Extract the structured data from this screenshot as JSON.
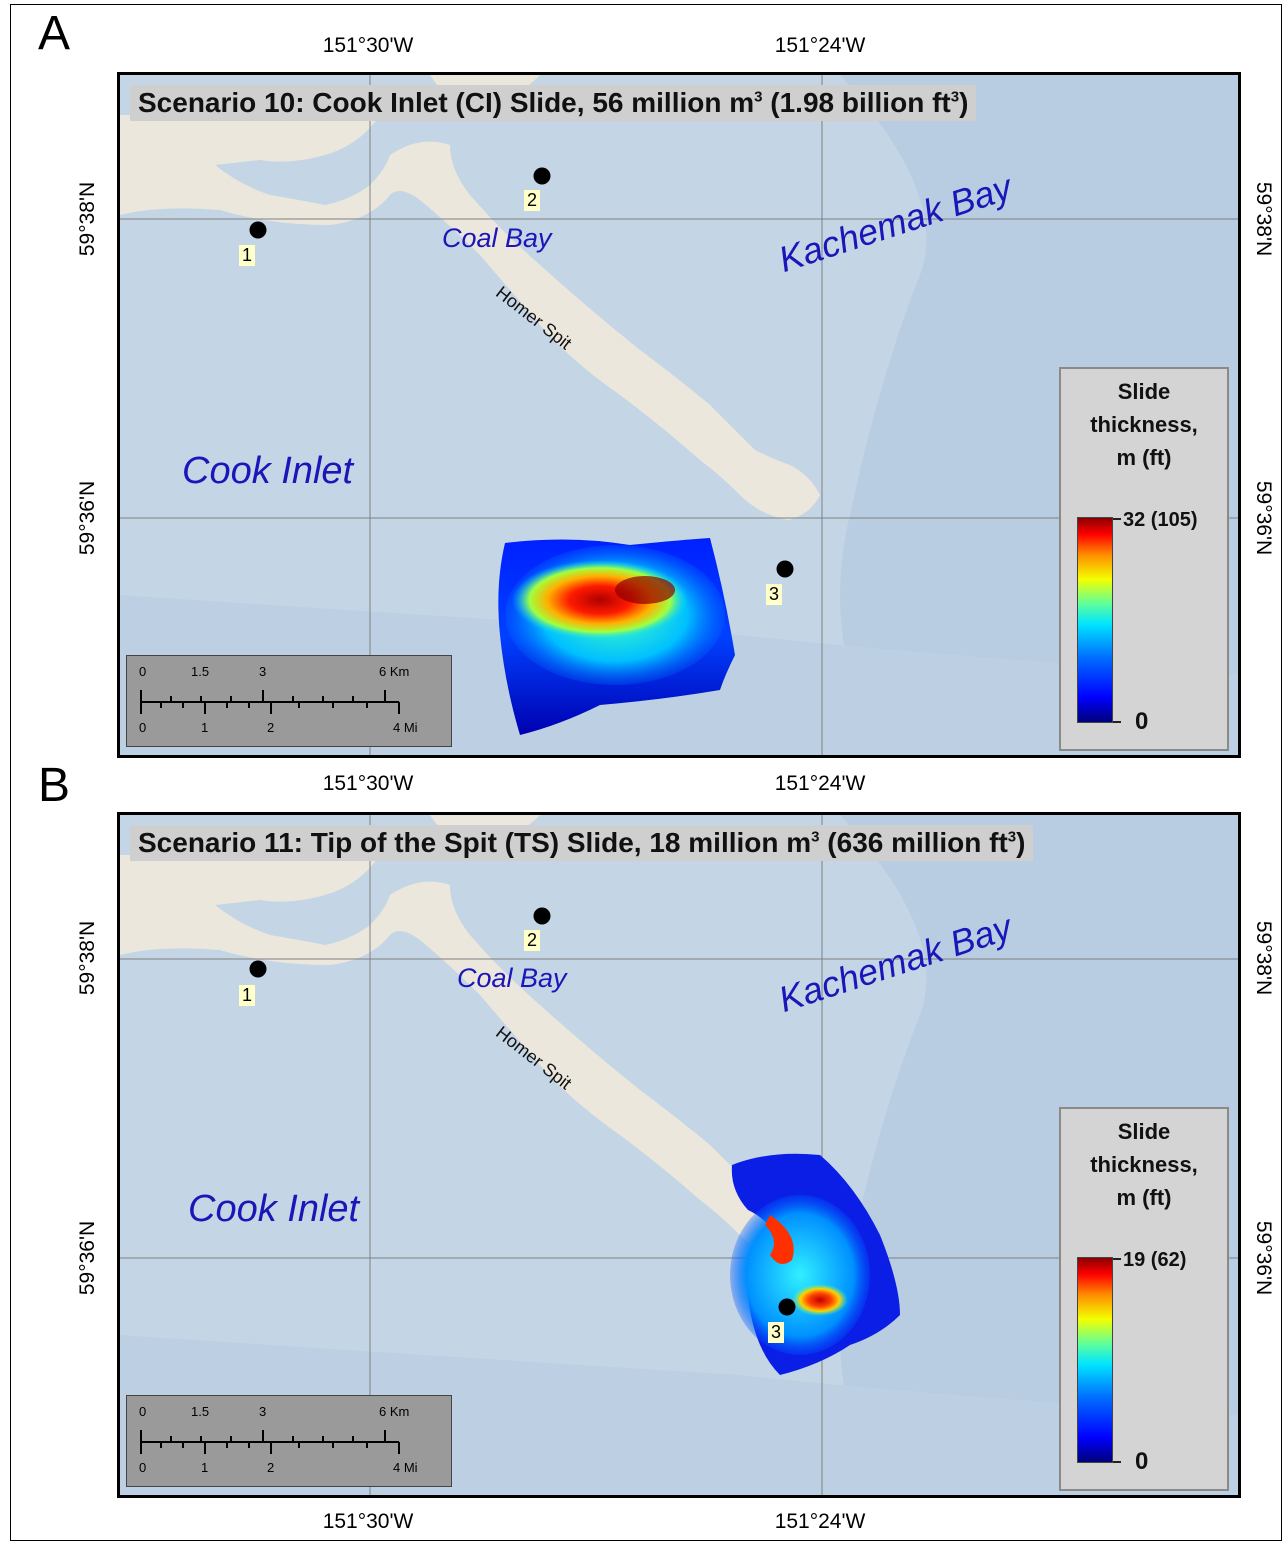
{
  "panels": [
    {
      "letter": "A",
      "title_text": "Scenario 10: Cook Inlet (CI) Slide, 56 million m",
      "title_mid": " (1.98 billion ft",
      "title_end": ")",
      "sup": "3",
      "lon_labels": [
        "151°30'W",
        "151°24'W"
      ],
      "lat_labels": [
        "59°38'N",
        "59°36'N"
      ],
      "places": {
        "cook_inlet": "Cook Inlet",
        "coal_bay": "Coal Bay",
        "kachemak_bay": "Kachemak Bay",
        "homer_spit": "Homer Spit"
      },
      "markers": [
        "1",
        "2",
        "3"
      ],
      "legend": {
        "line1": "Slide",
        "line2": "thickness,",
        "line3": "m (ft)",
        "max": "32 (105)",
        "min": "0"
      },
      "slide_max_thickness_m": 32,
      "slide_max_thickness_ft": 105,
      "scalebar": {
        "km_labels": [
          "0",
          "1.5",
          "3",
          "6 Km"
        ],
        "mi_labels": [
          "0",
          "1",
          "2",
          "4 Mi"
        ]
      }
    },
    {
      "letter": "B",
      "title_text": "Scenario 11: Tip of the Spit  (TS) Slide, 18 million m",
      "title_mid": " (636 million ft",
      "title_end": ")",
      "sup": "3",
      "lon_labels": [
        "151°30'W",
        "151°24'W"
      ],
      "lat_labels": [
        "59°38'N",
        "59°36'N"
      ],
      "places": {
        "cook_inlet": "Cook Inlet",
        "coal_bay": "Coal Bay",
        "kachemak_bay": "Kachemak Bay",
        "homer_spit": "Homer Spit"
      },
      "markers": [
        "1",
        "2",
        "3"
      ],
      "legend": {
        "line1": "Slide",
        "line2": "thickness,",
        "line3": "m (ft)",
        "max": "19 (62)",
        "min": "0"
      },
      "slide_max_thickness_m": 19,
      "slide_max_thickness_ft": 62,
      "scalebar": {
        "km_labels": [
          "0",
          "1.5",
          "3",
          "6 Km"
        ],
        "mi_labels": [
          "0",
          "1",
          "2",
          "4 Mi"
        ]
      }
    }
  ],
  "colors": {
    "water": "#c4d5e6",
    "deep_water": "#b9cde2",
    "land": "#ece7dc",
    "place_label": "#1a16b8",
    "graticule": "#7f7f7f"
  }
}
